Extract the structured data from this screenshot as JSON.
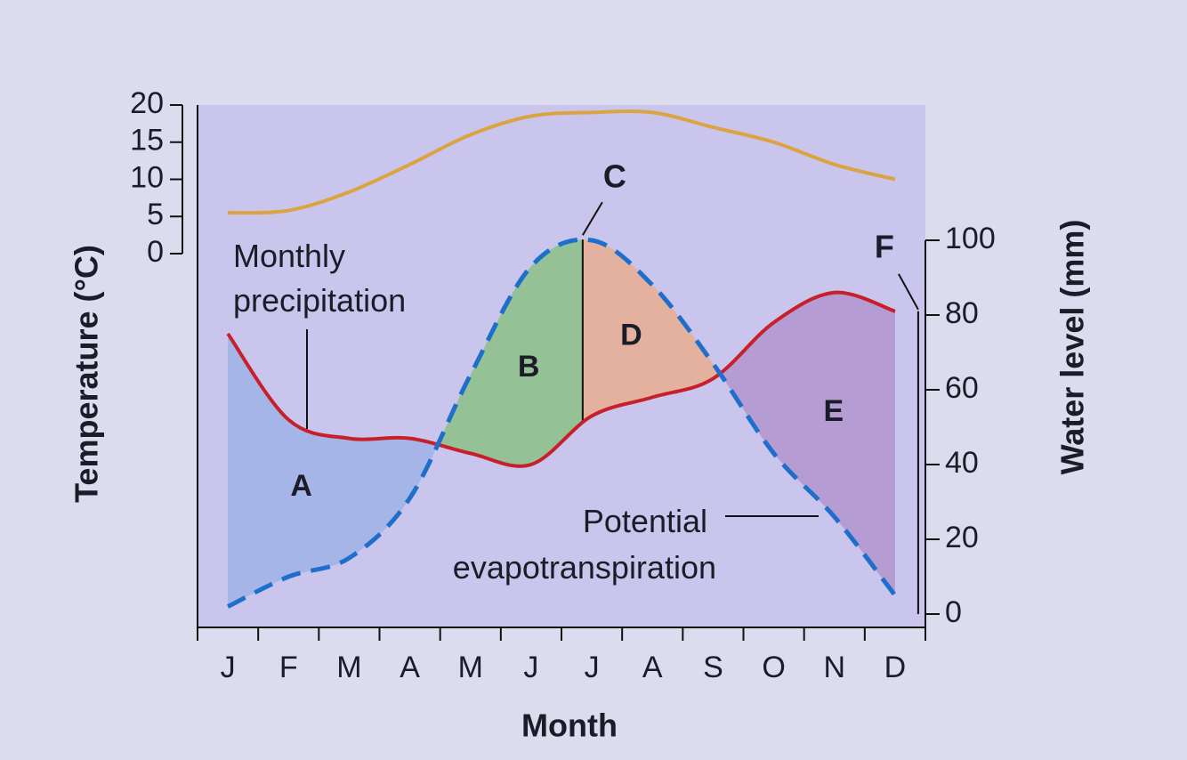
{
  "chart_data": {
    "type": "line",
    "x_label": "Month",
    "y_label": "Temperature (°C)",
    "y2_label": "Water level (mm)",
    "categories": [
      "J",
      "F",
      "M",
      "A",
      "M",
      "J",
      "J",
      "A",
      "S",
      "O",
      "N",
      "D"
    ],
    "ylim": [
      0,
      20
    ],
    "yticks": [
      0,
      5,
      10,
      15,
      20
    ],
    "y2lim": [
      0,
      100
    ],
    "y2ticks": [
      0,
      20,
      40,
      60,
      80,
      100
    ],
    "series": [
      {
        "color": "#dba441",
        "values": [
          5.5,
          5.8,
          8.3,
          12,
          16,
          18.5,
          19,
          19,
          17,
          15,
          12,
          10
        ]
      },
      {
        "name": "Monthly precipitation",
        "color": "#c8202a",
        "axis": "y2",
        "values": [
          75,
          52,
          47,
          47,
          43,
          40,
          53,
          58,
          63,
          78,
          86,
          81
        ]
      },
      {
        "name": "Potential evapotranspiration",
        "color": "#1e6fcc",
        "axis": "y2",
        "dashed": true,
        "values": [
          2,
          10,
          15,
          31,
          64,
          93,
          100,
          88,
          67,
          43,
          26,
          5
        ]
      }
    ],
    "regions": [
      {
        "label": "A",
        "color": "#9fb2e8"
      },
      {
        "label": "B",
        "color": "#8cc088"
      },
      {
        "label": "D",
        "color": "#e8ad90"
      },
      {
        "label": "E",
        "color": "#b294cf"
      }
    ],
    "line_labels": [
      "C",
      "F"
    ]
  }
}
